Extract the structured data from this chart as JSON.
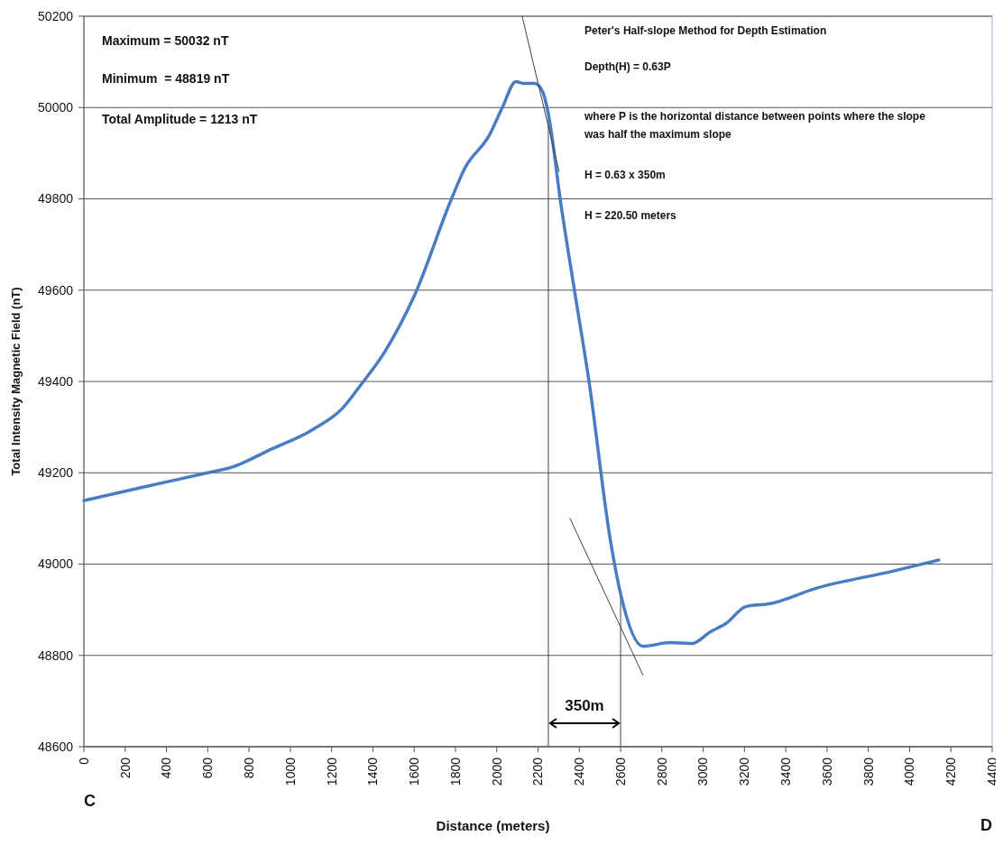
{
  "chart_data": {
    "type": "line",
    "xlabel": "Distance (meters)",
    "ylabel": "Total Intensity Magnetic Field (nT)",
    "xlim": [
      0,
      4400
    ],
    "xticks": [
      0,
      200,
      400,
      600,
      800,
      1000,
      1200,
      1400,
      1600,
      1800,
      2000,
      2200,
      2400,
      2600,
      2800,
      3000,
      3200,
      3400,
      3600,
      3800,
      4000,
      4200,
      4400
    ],
    "ylim": [
      48600,
      50200
    ],
    "yticks": [
      48600,
      48800,
      49000,
      49200,
      49400,
      49600,
      49800,
      50000,
      50200
    ],
    "grid": "y",
    "line_style": "solid",
    "series": [
      {
        "color": "#4a7cc4",
        "x": [
          0,
          300,
          600,
          716,
          900,
          1110,
          1250,
          1341,
          1459,
          1603,
          1778,
          1844,
          1966,
          2027,
          2093,
          2128,
          2184,
          2224,
          2250,
          2311,
          2377,
          2447,
          2551,
          2600,
          2708,
          2840,
          2945,
          3036,
          3111,
          3207,
          3320,
          3547,
          3923,
          4141
        ],
        "values": [
          49139,
          49170,
          49200,
          49212,
          49250,
          49295,
          49340,
          49392,
          49466,
          49590,
          49797,
          49866,
          49941,
          50000,
          50057,
          50053,
          50053,
          50033,
          49986,
          49788,
          49598,
          49400,
          49051,
          48935,
          48820,
          48828,
          48826,
          48852,
          48870,
          48907,
          48913,
          48947,
          48985,
          49009
        ]
      },
      {
        "type": "line",
        "color": "#404040",
        "x": [
          2123,
          2302
        ],
        "values": [
          50200,
          49860
        ]
      },
      {
        "type": "line",
        "color": "#404040",
        "x": [
          2355,
          2708
        ],
        "values": [
          49100,
          48757
        ]
      }
    ],
    "ref_lines": [
      {
        "axis": "x",
        "value": 2250,
        "color": "#404040"
      },
      {
        "axis": "x",
        "value": 2600,
        "color": "#404040"
      }
    ],
    "annotations": [
      "Maximum = 50032 nT",
      "Minimum  = 48819 nT",
      "Total Amplitude = 1213 nT",
      "Peter's Half-slope Method for Depth Estimation",
      "Depth(H) = 0.63P",
      "where P is the horizontal distance between points where the slope was half the maximum slope",
      "H = 0.63 x 350m",
      "H = 220.50 meters",
      "C",
      "D",
      "350m"
    ]
  }
}
